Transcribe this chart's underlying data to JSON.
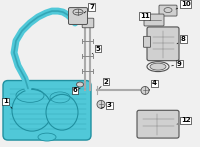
{
  "bg_color": "#f0f0f0",
  "tank_color": "#50c8d8",
  "tank_outline": "#2090a0",
  "tank_dark": "#3aacbc",
  "line_color": "#50c8d8",
  "part_color": "#d0d0d0",
  "part_outline": "#505050",
  "label_color": "#000000",
  "pipe_color": "#aaaaaa",
  "pipe_dark": "#888888"
}
